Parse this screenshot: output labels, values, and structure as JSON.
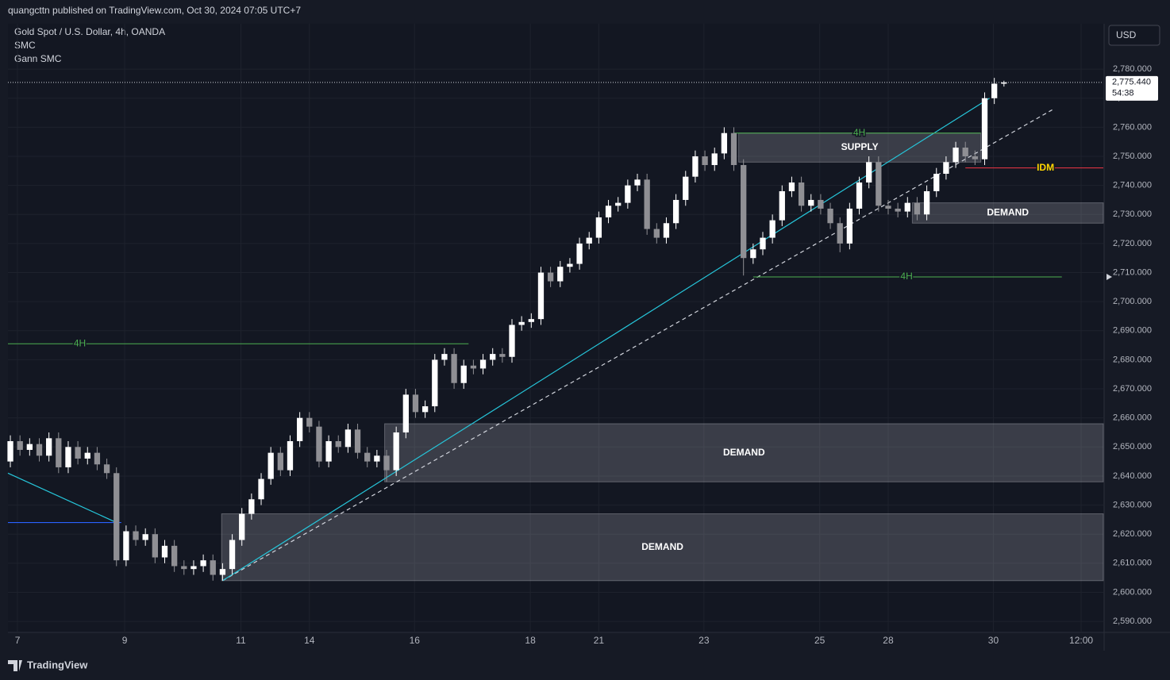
{
  "header": {
    "publisher": "quangcttn published on TradingView.com, Oct 30, 2024 07:05 UTC+7",
    "symbol": "Gold Spot / U.S. Dollar, 4h, OANDA",
    "indicators": [
      "SMC",
      "Gann SMC"
    ],
    "currency": "USD",
    "brand": "TradingView"
  },
  "chart_data": {
    "type": "candlestick",
    "x": [
      0,
      1,
      2,
      3,
      4,
      5,
      6,
      7,
      8,
      9,
      10,
      11,
      12,
      13,
      14,
      15,
      16,
      17,
      18,
      19,
      20,
      21,
      22,
      23,
      24,
      25,
      26,
      27,
      28,
      29,
      30,
      31,
      32,
      33,
      34,
      35,
      36,
      37,
      38,
      39,
      40,
      41,
      42,
      43,
      44,
      45,
      46,
      47,
      48,
      49,
      50,
      51,
      52,
      53,
      54,
      55,
      56,
      57,
      58,
      59,
      60,
      61,
      62,
      63,
      64,
      65,
      66,
      67,
      68,
      69,
      70,
      71,
      72,
      73,
      74,
      75,
      76,
      77,
      78,
      79,
      80,
      81,
      82,
      83,
      84,
      85,
      86,
      87,
      88,
      89,
      90,
      91,
      92,
      93,
      94,
      95,
      96,
      97,
      98,
      99,
      100,
      101,
      102,
      103
    ],
    "open": [
      2645,
      2652,
      2649,
      2651,
      2647,
      2653,
      2643,
      2650,
      2646,
      2648,
      2644,
      2641,
      2611,
      2621,
      2618,
      2620,
      2612,
      2616,
      2609,
      2608,
      2609,
      2611,
      2606,
      2608,
      2618,
      2627,
      2632,
      2639,
      2648,
      2642,
      2652,
      2660,
      2657,
      2645,
      2652,
      2650,
      2656,
      2648,
      2645,
      2647,
      2642,
      2655,
      2668,
      2662,
      2664,
      2680,
      2682,
      2672,
      2678,
      2677,
      2680,
      2682,
      2681,
      2692,
      2693,
      2694,
      2710,
      2707,
      2712,
      2713,
      2720,
      2722,
      2729,
      2733,
      2734,
      2740,
      2742,
      2725,
      2722,
      2727,
      2735,
      2743,
      2750,
      2747,
      2751,
      2758,
      2747,
      2715,
      2718,
      2722,
      2728,
      2738,
      2741,
      2733,
      2735,
      2732,
      2727,
      2720,
      2732,
      2741,
      2748,
      2733,
      2732,
      2731,
      2734,
      2730,
      2738,
      2744,
      2748,
      2753,
      2750,
      2749,
      2770,
      2775
    ],
    "high": [
      2654,
      2654,
      2653,
      2653,
      2655,
      2655,
      2652,
      2652,
      2650,
      2650,
      2646,
      2643,
      2623,
      2623,
      2622,
      2622,
      2618,
      2618,
      2611,
      2611,
      2613,
      2613,
      2610,
      2620,
      2629,
      2634,
      2641,
      2650,
      2650,
      2654,
      2662,
      2662,
      2659,
      2654,
      2654,
      2658,
      2658,
      2650,
      2649,
      2649,
      2657,
      2670,
      2670,
      2666,
      2682,
      2684,
      2684,
      2680,
      2680,
      2682,
      2684,
      2684,
      2694,
      2695,
      2696,
      2712,
      2712,
      2714,
      2715,
      2722,
      2724,
      2731,
      2735,
      2736,
      2742,
      2744,
      2744,
      2727,
      2729,
      2737,
      2745,
      2752,
      2752,
      2753,
      2760,
      2760,
      2749,
      2720,
      2724,
      2730,
      2740,
      2743,
      2743,
      2737,
      2737,
      2734,
      2729,
      2734,
      2743,
      2750,
      2750,
      2735,
      2734,
      2736,
      2736,
      2740,
      2746,
      2750,
      2755,
      2755,
      2752,
      2772,
      2777,
      2776
    ],
    "low": [
      2643,
      2647,
      2647,
      2645,
      2645,
      2641,
      2641,
      2644,
      2644,
      2642,
      2639,
      2609,
      2609,
      2616,
      2616,
      2610,
      2610,
      2607,
      2606,
      2606,
      2607,
      2604,
      2604,
      2606,
      2616,
      2625,
      2630,
      2637,
      2640,
      2640,
      2650,
      2655,
      2643,
      2643,
      2648,
      2648,
      2646,
      2643,
      2643,
      2638,
      2640,
      2653,
      2660,
      2660,
      2662,
      2678,
      2670,
      2670,
      2675,
      2675,
      2678,
      2679,
      2679,
      2690,
      2691,
      2692,
      2705,
      2705,
      2710,
      2711,
      2718,
      2720,
      2727,
      2731,
      2732,
      2738,
      2723,
      2720,
      2720,
      2725,
      2733,
      2741,
      2745,
      2745,
      2749,
      2745,
      2709,
      2713,
      2716,
      2720,
      2726,
      2736,
      2731,
      2731,
      2730,
      2725,
      2717,
      2718,
      2730,
      2739,
      2731,
      2730,
      2729,
      2729,
      2728,
      2728,
      2736,
      2742,
      2746,
      2748,
      2747,
      2747,
      2768,
      2774
    ],
    "close": [
      2652,
      2649,
      2651,
      2647,
      2653,
      2643,
      2650,
      2646,
      2648,
      2644,
      2641,
      2611,
      2621,
      2618,
      2620,
      2612,
      2616,
      2609,
      2608,
      2609,
      2611,
      2606,
      2608,
      2618,
      2627,
      2632,
      2639,
      2648,
      2642,
      2652,
      2660,
      2657,
      2645,
      2652,
      2650,
      2656,
      2648,
      2645,
      2647,
      2642,
      2655,
      2668,
      2662,
      2664,
      2680,
      2682,
      2672,
      2678,
      2677,
      2680,
      2682,
      2681,
      2692,
      2693,
      2694,
      2710,
      2707,
      2712,
      2713,
      2720,
      2722,
      2729,
      2733,
      2734,
      2740,
      2742,
      2725,
      2722,
      2727,
      2735,
      2743,
      2750,
      2747,
      2751,
      2758,
      2747,
      2715,
      2718,
      2722,
      2728,
      2738,
      2741,
      2733,
      2735,
      2732,
      2727,
      2720,
      2732,
      2741,
      2748,
      2733,
      2732,
      2731,
      2734,
      2730,
      2738,
      2744,
      2748,
      2753,
      2750,
      2749,
      2770,
      2775,
      2775.44
    ],
    "up_color": "#ffffff",
    "down_color": "#8f8f94",
    "xlim": [
      -0.25,
      113.3
    ],
    "xticks": [
      {
        "value": 0.74,
        "label": "7"
      },
      {
        "value": 11.85,
        "label": "9"
      },
      {
        "value": 23.9,
        "label": "11"
      },
      {
        "value": 31,
        "label": "14"
      },
      {
        "value": 41.9,
        "label": "16"
      },
      {
        "value": 53.9,
        "label": "18"
      },
      {
        "value": 61,
        "label": "21"
      },
      {
        "value": 71.9,
        "label": "23"
      },
      {
        "value": 83.9,
        "label": "25"
      },
      {
        "value": 91,
        "label": "28"
      },
      {
        "value": 101.9,
        "label": "30"
      },
      {
        "value": 111,
        "label": "12:00"
      }
    ],
    "ylim": [
      2586.2,
      2795.6
    ],
    "yticks": [
      {
        "value": 2590,
        "label": "2,590.000"
      },
      {
        "value": 2600,
        "label": "2,600.000"
      },
      {
        "value": 2610,
        "label": "2,610.000"
      },
      {
        "value": 2620,
        "label": "2,620.000"
      },
      {
        "value": 2630,
        "label": "2,630.000"
      },
      {
        "value": 2640,
        "label": "2,640.000"
      },
      {
        "value": 2650,
        "label": "2,650.000"
      },
      {
        "value": 2660,
        "label": "2,660.000"
      },
      {
        "value": 2670,
        "label": "2,670.000"
      },
      {
        "value": 2680,
        "label": "2,680.000"
      },
      {
        "value": 2690,
        "label": "2,690.000"
      },
      {
        "value": 2700,
        "label": "2,700.000"
      },
      {
        "value": 2710,
        "label": "2,710.000"
      },
      {
        "value": 2720,
        "label": "2,720.000"
      },
      {
        "value": 2730,
        "label": "2,730.000"
      },
      {
        "value": 2740,
        "label": "2,740.000"
      },
      {
        "value": 2750,
        "label": "2,750.000"
      },
      {
        "value": 2760,
        "label": "2,760.000"
      },
      {
        "value": 2770,
        "label": "2,770.000"
      },
      {
        "value": 2780,
        "label": "2,780.000"
      }
    ],
    "grid": true,
    "zones": [
      {
        "label": "SUPPLY",
        "top": 2758,
        "bottom": 2748,
        "x0": 75.5,
        "x1": 100.6
      },
      {
        "label": "DEMAND",
        "top": 2734,
        "bottom": 2727,
        "x0": 93.5,
        "x1": 113.3
      },
      {
        "label": "DEMAND",
        "top": 2658,
        "bottom": 2638,
        "x0": 38.8,
        "x1": 113.3
      },
      {
        "label": "DEMAND",
        "top": 2627,
        "bottom": 2604,
        "x0": 21.9,
        "x1": 113.3
      }
    ],
    "levels": [
      {
        "label": "4H",
        "value": 2685.5,
        "x0": -0.25,
        "x1": 47.5,
        "label_x": 7.2,
        "color": "#4caf50"
      },
      {
        "label": "4H",
        "value": 2708.5,
        "x0": 77,
        "x1": 109,
        "label_x": 92.9,
        "color": "#4caf50"
      },
      {
        "label": "4H",
        "value": 2758,
        "x0": 75,
        "x1": 100.6,
        "label_x": 88,
        "color": "#4caf50"
      },
      {
        "label": "IDM",
        "value": 2746,
        "x0": 99,
        "x1": 113.3,
        "label_x": 107.3,
        "color": "#f23645"
      }
    ],
    "lines": [
      {
        "x": [
          22,
          108
        ],
        "y": [
          2604,
          2766
        ],
        "color": "#d1d4dc",
        "dashed": true
      },
      {
        "x": [
          22,
          101.5
        ],
        "y": [
          2604,
          2770
        ],
        "color": "#26c6da",
        "dashed": false
      },
      {
        "x": [
          -0.25,
          11
        ],
        "y": [
          2641,
          2624
        ],
        "color": "#26c6da",
        "dashed": false
      },
      {
        "x": [
          -0.25,
          11.5
        ],
        "y": [
          2624,
          2624
        ],
        "color": "#2962ff",
        "dashed": false
      }
    ],
    "last_price": {
      "value": 2775.44,
      "label": "2,775.440",
      "countdown": "54:38"
    }
  }
}
